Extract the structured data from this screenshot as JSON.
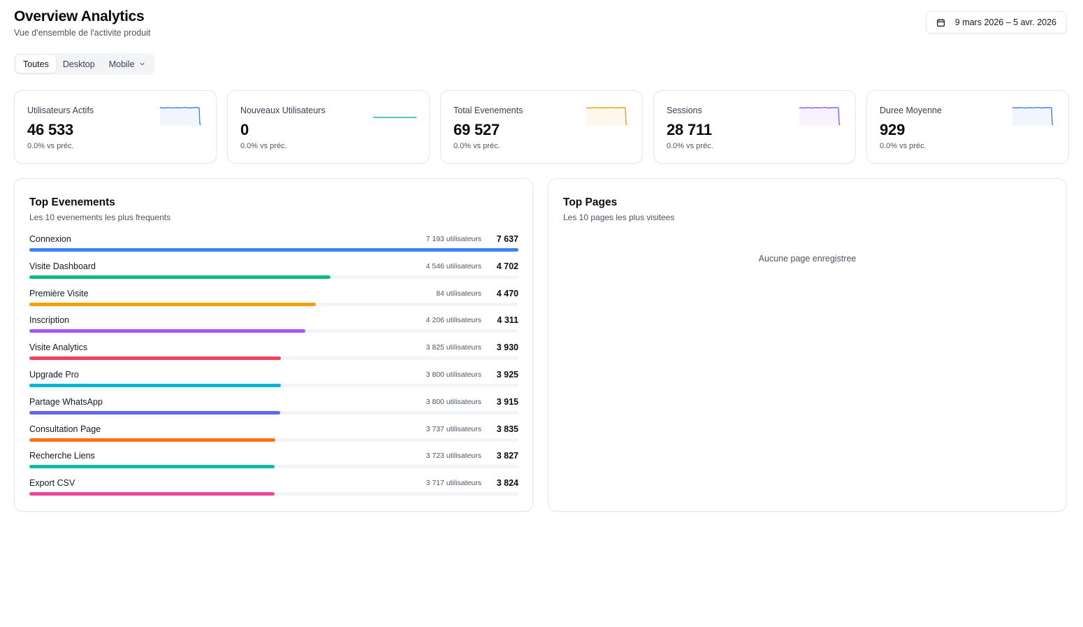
{
  "header": {
    "title": "Overview Analytics",
    "subtitle": "Vue d'ensemble de l'activite produit"
  },
  "date_range": {
    "label": "9 mars 2026 – 5 avr. 2026",
    "icon": "calendar-icon"
  },
  "tabs": [
    {
      "label": "Toutes",
      "active": true
    },
    {
      "label": "Desktop",
      "active": false
    },
    {
      "label": "Mobile",
      "active": false,
      "icon": "chevron-down-icon"
    }
  ],
  "kpis": [
    {
      "label": "Utilisateurs Actifs",
      "value": "46 533",
      "delta": "0.0% vs préc.",
      "color": "#3b82f6"
    },
    {
      "label": "Nouveaux Utilisateurs",
      "value": "0",
      "delta": "0.0% vs préc.",
      "color": "#14b8a6"
    },
    {
      "label": "Total Evenements",
      "value": "69 527",
      "delta": "0.0% vs préc.",
      "color": "#f59e0b"
    },
    {
      "label": "Sessions",
      "value": "28 711",
      "delta": "0.0% vs préc.",
      "color": "#8b5cf6"
    },
    {
      "label": "Duree Moyenne",
      "value": "929",
      "delta": "0.0% vs préc.",
      "color": "#3b82f6"
    }
  ],
  "top_events": {
    "title": "Top Evenements",
    "subtitle": "Les 10 evenements les plus frequents",
    "items": [
      {
        "name": "Connexion",
        "users": "7 193 utilisateurs",
        "count": "7 637",
        "count_value": 7637,
        "color": "#3b82f6"
      },
      {
        "name": "Visite Dashboard",
        "users": "4 546 utilisateurs",
        "count": "4 702",
        "count_value": 4702,
        "color": "#10b981"
      },
      {
        "name": "Première Visite",
        "users": "84 utilisateurs",
        "count": "4 470",
        "count_value": 4470,
        "color": "#f59e0b"
      },
      {
        "name": "Inscription",
        "users": "4 206 utilisateurs",
        "count": "4 311",
        "count_value": 4311,
        "color": "#a855f7"
      },
      {
        "name": "Visite Analytics",
        "users": "3 825 utilisateurs",
        "count": "3 930",
        "count_value": 3930,
        "color": "#f43f5e"
      },
      {
        "name": "Upgrade Pro",
        "users": "3 800 utilisateurs",
        "count": "3 925",
        "count_value": 3925,
        "color": "#06b6d4"
      },
      {
        "name": "Partage WhatsApp",
        "users": "3 800 utilisateurs",
        "count": "3 915",
        "count_value": 3915,
        "color": "#6366f1"
      },
      {
        "name": "Consultation Page",
        "users": "3 737 utilisateurs",
        "count": "3 835",
        "count_value": 3835,
        "color": "#f97316"
      },
      {
        "name": "Recherche Liens",
        "users": "3 723 utilisateurs",
        "count": "3 827",
        "count_value": 3827,
        "color": "#14b8a6"
      },
      {
        "name": "Export CSV",
        "users": "3 717 utilisateurs",
        "count": "3 824",
        "count_value": 3824,
        "color": "#ec4899"
      }
    ]
  },
  "top_pages": {
    "title": "Top Pages",
    "subtitle": "Les 10 pages les plus visitees",
    "empty_message": "Aucune page enregistree"
  }
}
